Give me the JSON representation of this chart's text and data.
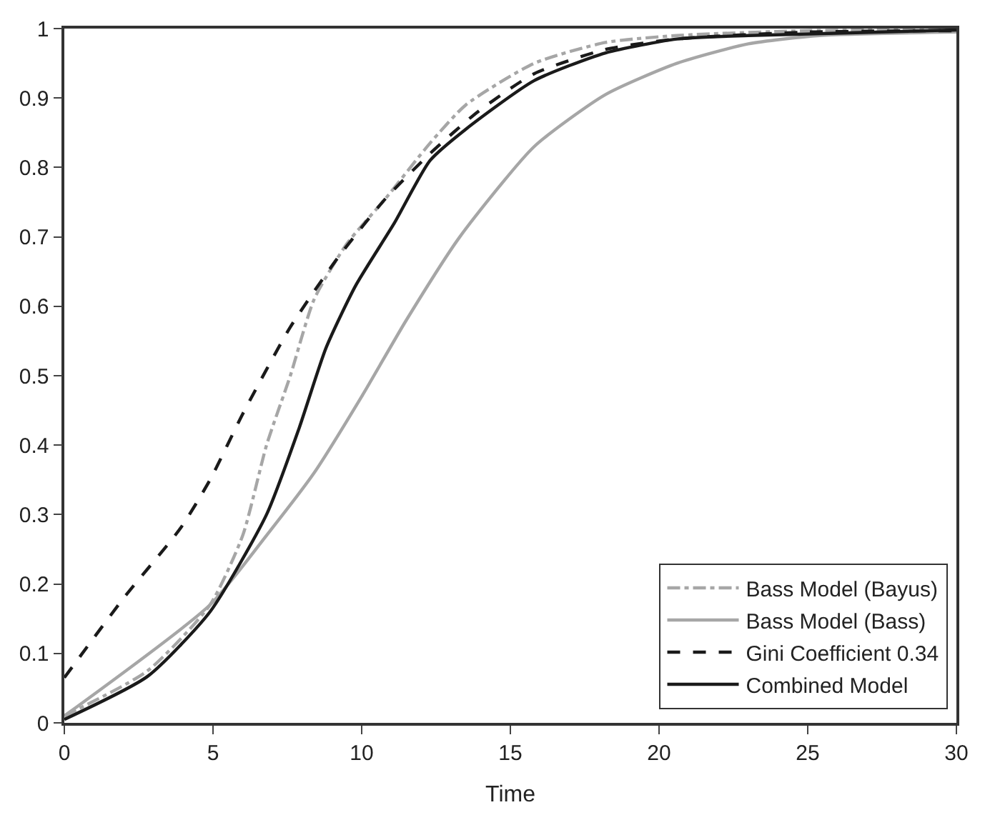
{
  "chart_data": {
    "type": "line",
    "xlabel": "Time",
    "xlim": [
      0,
      30
    ],
    "xticks": [
      0,
      5,
      10,
      15,
      20,
      25,
      30
    ],
    "ylim": [
      0,
      1
    ],
    "yticks": [
      0,
      0.1,
      0.2,
      0.3,
      0.4,
      0.5,
      0.6,
      0.7,
      0.8,
      0.9,
      1
    ],
    "legend": "bottom right",
    "marker": "none",
    "series": [
      {
        "name": "Bass Model (Bayus)",
        "color": "#a6a6a6",
        "line_style": "dashdot",
        "x": [
          0,
          2.8,
          4.9,
          6,
          6.8,
          7.6,
          8.4,
          9.5,
          10.8,
          12.3,
          13.5,
          15.8,
          18.2,
          20.6,
          25,
          30
        ],
        "values": [
          0.01,
          0.075,
          0.17,
          0.27,
          0.4,
          0.5,
          0.61,
          0.69,
          0.755,
          0.835,
          0.89,
          0.95,
          0.98,
          0.99,
          0.997,
          0.998
        ]
      },
      {
        "name": "Bass Model (Bass)",
        "color": "#a6a6a6",
        "line_style": "solid",
        "x": [
          0,
          4.9,
          6.8,
          8.4,
          10,
          11.5,
          13.3,
          15.8,
          18.2,
          20.6,
          23,
          25.4,
          30
        ],
        "values": [
          0.01,
          0.17,
          0.27,
          0.36,
          0.47,
          0.58,
          0.7,
          0.83,
          0.905,
          0.95,
          0.978,
          0.99,
          0.995
        ]
      },
      {
        "name": "Gini Coefficient 0.34",
        "color": "#1a1a1a",
        "line_style": "dashed",
        "x": [
          0,
          2,
          3.9,
          4.9,
          6,
          7.6,
          9.2,
          10.8,
          12.3,
          13.9,
          15.8,
          18.2,
          20.6,
          25,
          30
        ],
        "values": [
          0.065,
          0.18,
          0.28,
          0.35,
          0.445,
          0.57,
          0.67,
          0.755,
          0.82,
          0.88,
          0.935,
          0.97,
          0.985,
          0.995,
          0.997
        ]
      },
      {
        "name": "Combined Model",
        "color": "#1a1a1a",
        "line_style": "solid",
        "x": [
          0,
          2.8,
          4.9,
          6.8,
          7.9,
          8.8,
          9.8,
          11.1,
          12.3,
          13.5,
          15.8,
          18.2,
          20.6,
          23,
          30
        ],
        "values": [
          0.005,
          0.067,
          0.16,
          0.3,
          0.425,
          0.54,
          0.63,
          0.72,
          0.81,
          0.855,
          0.925,
          0.965,
          0.985,
          0.99,
          0.998
        ]
      }
    ]
  }
}
